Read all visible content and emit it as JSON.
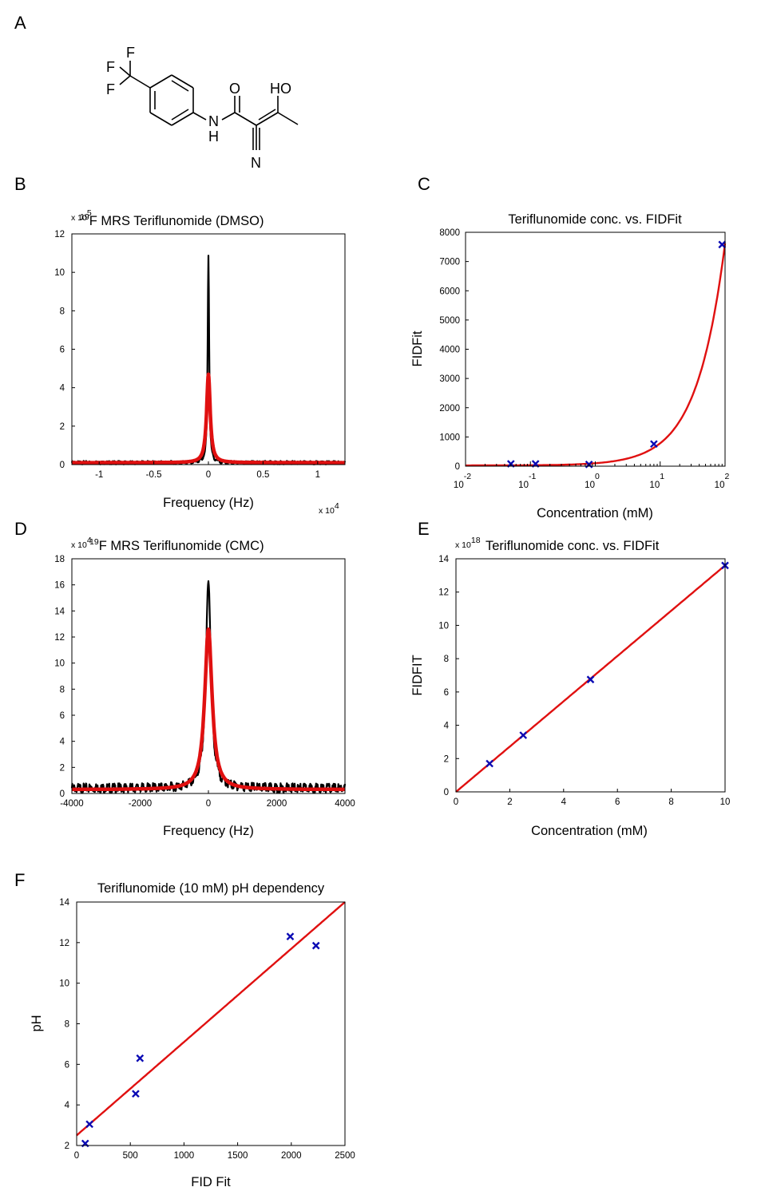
{
  "panel_labels": [
    "A",
    "B",
    "C",
    "D",
    "E",
    "F"
  ],
  "molecule": {
    "atoms": {
      "f1": "F",
      "f2": "F",
      "f3": "F",
      "o_carbonyl": "O",
      "ho": "HO",
      "n_amide": "N",
      "h_amide": "H",
      "n_nitrile": "N"
    }
  },
  "colors": {
    "fit_line": "#e01010",
    "marker": "#0a0ab4",
    "spectrum": "#000000"
  },
  "chart_data": [
    {
      "id": "B",
      "type": "line",
      "title": "19F MRS Teriflunomide (DMSO)",
      "title_parts": {
        "sup": "19",
        "text": "F MRS Teriflunomide (DMSO)"
      },
      "xlabel": "Frequency (Hz)",
      "ylabel": "",
      "x_multiplier": {
        "prefix": "x 10",
        "exp": "4"
      },
      "y_multiplier": {
        "prefix": "x 10",
        "exp": "5"
      },
      "xlim": [
        -1.25,
        1.25
      ],
      "ylim": [
        0,
        12
      ],
      "x_ticks": [
        -1,
        -0.5,
        0,
        0.5,
        1
      ],
      "x_tick_labels": [
        "-1",
        "-0.5",
        "0",
        "0.5",
        "1"
      ],
      "y_ticks": [
        0,
        2,
        4,
        6,
        8,
        10,
        12
      ],
      "y_tick_labels": [
        "0",
        "2",
        "4",
        "6",
        "8",
        "10",
        "12"
      ],
      "series": [
        {
          "role": "measured spectrum",
          "color": "#000000",
          "center": 0,
          "peak": 10.8,
          "width": 0.008,
          "baseline": 0.1
        },
        {
          "role": "fit",
          "color": "#e01010",
          "center": 0,
          "peak": 4.6,
          "width": 0.02,
          "baseline": 0.1
        }
      ]
    },
    {
      "id": "C",
      "type": "scatter",
      "title": "Teriflunomide conc. vs. FIDFit",
      "xlabel": "Concentration (mM)",
      "ylabel": "FIDFit",
      "x_scale": "log",
      "xlim": [
        0.01,
        100
      ],
      "ylim": [
        0,
        8000
      ],
      "x_tick_labels": [
        {
          "value": 0.01,
          "base": "10",
          "exp": "-2"
        },
        {
          "value": 0.1,
          "base": "10",
          "exp": "-1"
        },
        {
          "value": 1,
          "base": "10",
          "exp": "0"
        },
        {
          "value": 10,
          "base": "10",
          "exp": "1"
        },
        {
          "value": 100,
          "base": "10",
          "exp": "2"
        }
      ],
      "y_ticks": [
        0,
        1000,
        2000,
        3000,
        4000,
        5000,
        6000,
        7000,
        8000
      ],
      "y_tick_labels": [
        "0",
        "1000",
        "2000",
        "3000",
        "4000",
        "5000",
        "6000",
        "7000",
        "8000"
      ],
      "points": {
        "x": [
          0.05,
          0.12,
          0.8,
          8,
          90
        ],
        "y": [
          80,
          80,
          60,
          760,
          7580
        ]
      },
      "fit": {
        "type": "linear",
        "slope": 76,
        "intercept": 25
      }
    },
    {
      "id": "D",
      "type": "line",
      "title": "19F MRS Teriflunomide (CMC)",
      "title_parts": {
        "sup": "19",
        "text": "F MRS Teriflunomide (CMC)"
      },
      "xlabel": "Frequency (Hz)",
      "ylabel": "",
      "y_multiplier": {
        "prefix": "x 10",
        "exp": "4"
      },
      "xlim": [
        -4000,
        4000
      ],
      "ylim": [
        0,
        18
      ],
      "x_ticks": [
        -4000,
        -2000,
        0,
        2000,
        4000
      ],
      "x_tick_labels": [
        "-4000",
        "-2000",
        "0",
        "2000",
        "4000"
      ],
      "y_ticks": [
        0,
        2,
        4,
        6,
        8,
        10,
        12,
        14,
        16,
        18
      ],
      "y_tick_labels": [
        "0",
        "2",
        "4",
        "6",
        "8",
        "10",
        "12",
        "14",
        "16",
        "18"
      ],
      "series": [
        {
          "role": "measured spectrum",
          "color": "#000000",
          "center": 0,
          "peak": 16,
          "width": 90,
          "baseline": 0.4
        },
        {
          "role": "fit",
          "color": "#e01010",
          "center": 0,
          "peak": 12.3,
          "width": 130,
          "baseline": 0.3
        }
      ]
    },
    {
      "id": "E",
      "type": "scatter",
      "title": "Teriflunomide conc. vs. FIDFit",
      "xlabel": "Concentration (mM)",
      "ylabel": "FIDFIT",
      "y_multiplier": {
        "prefix": "x 10",
        "exp": "18"
      },
      "xlim": [
        0,
        10
      ],
      "ylim": [
        0,
        14
      ],
      "x_ticks": [
        0,
        2,
        4,
        6,
        8,
        10
      ],
      "x_tick_labels": [
        "0",
        "2",
        "4",
        "6",
        "8",
        "10"
      ],
      "y_ticks": [
        0,
        2,
        4,
        6,
        8,
        10,
        12,
        14
      ],
      "y_tick_labels": [
        "0",
        "2",
        "4",
        "6",
        "8",
        "10",
        "12",
        "14"
      ],
      "points": {
        "x": [
          1.25,
          2.5,
          5,
          10
        ],
        "y": [
          1.7,
          3.4,
          6.75,
          13.6
        ]
      },
      "fit": {
        "type": "linear",
        "slope": 1.36,
        "intercept": 0
      }
    },
    {
      "id": "F",
      "type": "scatter",
      "title": "Teriflunomide (10 mM) pH dependency",
      "xlabel": "FID Fit",
      "ylabel": "pH",
      "xlim": [
        0,
        2500
      ],
      "ylim": [
        2,
        14
      ],
      "x_ticks": [
        0,
        500,
        1000,
        1500,
        2000,
        2500
      ],
      "x_tick_labels": [
        "0",
        "500",
        "1000",
        "1500",
        "2000",
        "2500"
      ],
      "y_ticks": [
        2,
        4,
        6,
        8,
        10,
        12,
        14
      ],
      "y_tick_labels": [
        "2",
        "4",
        "6",
        "8",
        "10",
        "12",
        "14"
      ],
      "points": {
        "x": [
          80,
          120,
          550,
          590,
          1990,
          2230
        ],
        "y": [
          2.1,
          3.05,
          4.55,
          6.3,
          12.3,
          11.85
        ]
      },
      "fit": {
        "type": "linear",
        "slope": 0.0046,
        "intercept": 2.5
      }
    }
  ]
}
